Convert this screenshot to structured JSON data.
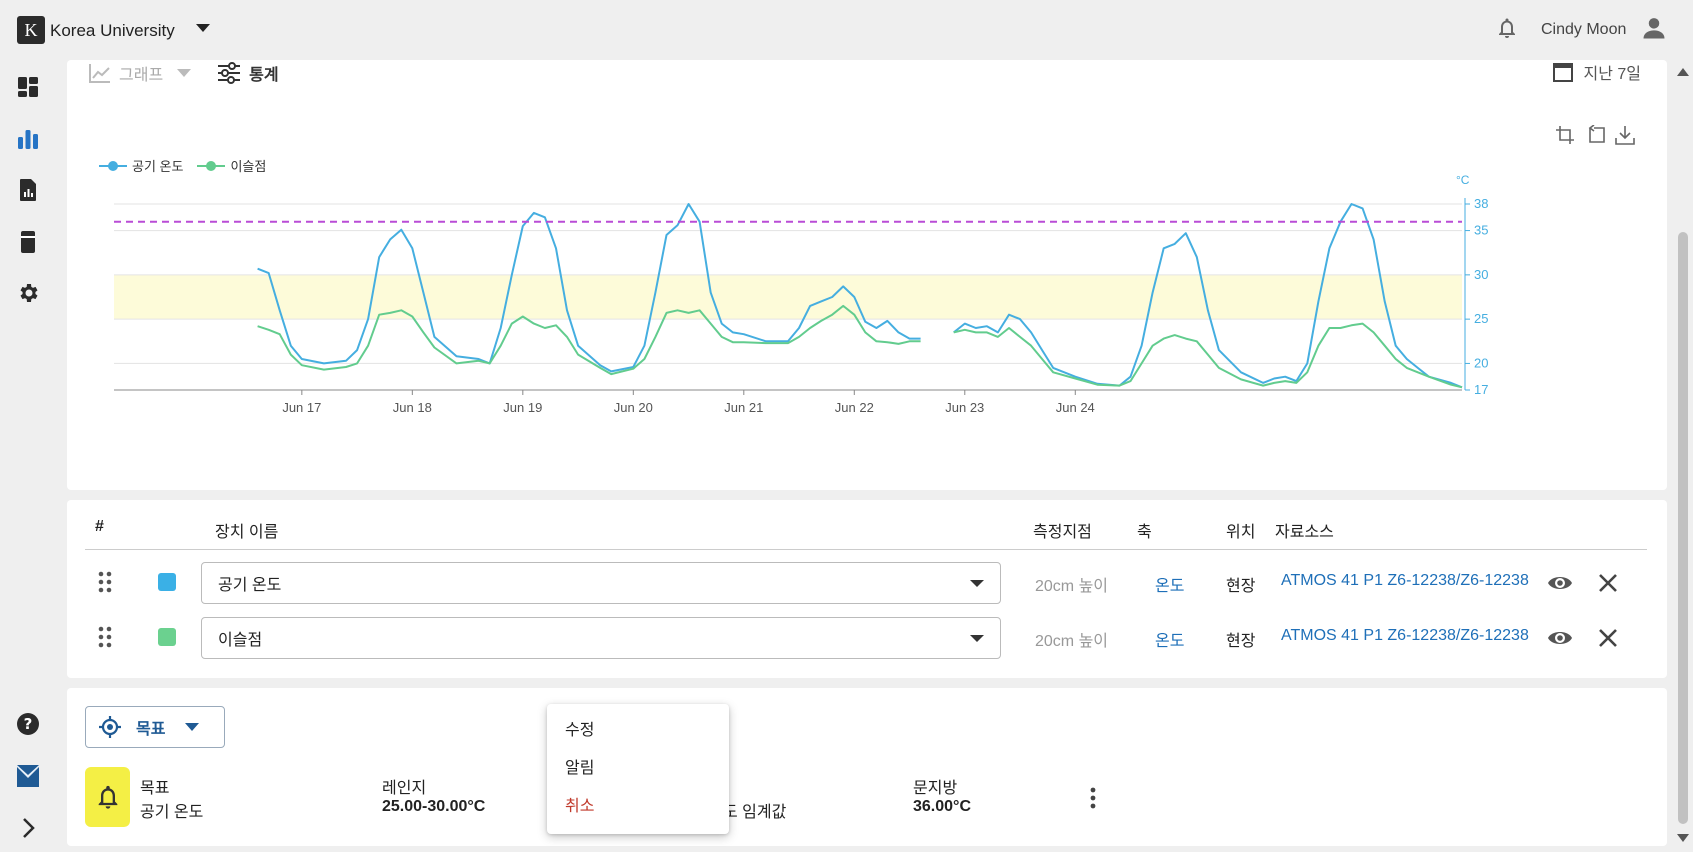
{
  "header": {
    "org_logo_letter": "K",
    "org_name": "Korea University",
    "user_name": "Cindy Moon"
  },
  "rail": {
    "icons": [
      "dashboard-icon",
      "bar-chart-icon",
      "report-icon",
      "device-icon",
      "gear-icon",
      "help-icon",
      "brand-logo-icon",
      "expand-icon"
    ],
    "active": "bar-chart-icon"
  },
  "chart_view": {
    "graph_tab": "그래프",
    "stats_tab": "통계",
    "date_range": "지난 7일"
  },
  "chart_data": {
    "type": "line",
    "title": "",
    "legend_placement": "top-left",
    "series": [
      {
        "name": "공기 온도",
        "color": "#45aee0",
        "points": [
          [
            16.6,
            30.7
          ],
          [
            16.7,
            30.2
          ],
          [
            16.8,
            26.0
          ],
          [
            16.9,
            22.0
          ],
          [
            17.0,
            20.5
          ],
          [
            17.2,
            20.0
          ],
          [
            17.4,
            20.3
          ],
          [
            17.5,
            21.5
          ],
          [
            17.6,
            25.0
          ],
          [
            17.7,
            32.0
          ],
          [
            17.8,
            34.0
          ],
          [
            17.9,
            35.1
          ],
          [
            18.0,
            33.0
          ],
          [
            18.1,
            28.0
          ],
          [
            18.2,
            23.0
          ],
          [
            18.4,
            20.8
          ],
          [
            18.6,
            20.5
          ],
          [
            18.7,
            20.0
          ],
          [
            18.8,
            24.0
          ],
          [
            18.9,
            30.0
          ],
          [
            19.0,
            35.5
          ],
          [
            19.1,
            37.0
          ],
          [
            19.2,
            36.5
          ],
          [
            19.3,
            33.0
          ],
          [
            19.4,
            26.0
          ],
          [
            19.5,
            22.0
          ],
          [
            19.7,
            19.8
          ],
          [
            19.8,
            19.1
          ],
          [
            20.0,
            19.6
          ],
          [
            20.1,
            22.0
          ],
          [
            20.2,
            28.0
          ],
          [
            20.3,
            34.5
          ],
          [
            20.4,
            35.6
          ],
          [
            20.5,
            38.0
          ],
          [
            20.6,
            36.0
          ],
          [
            20.7,
            28.0
          ],
          [
            20.8,
            24.5
          ],
          [
            20.9,
            23.5
          ],
          [
            21.0,
            23.3
          ],
          [
            21.2,
            22.5
          ],
          [
            21.4,
            22.5
          ],
          [
            21.5,
            24.0
          ],
          [
            21.6,
            26.5
          ],
          [
            21.7,
            27.0
          ],
          [
            21.8,
            27.5
          ],
          [
            21.9,
            28.7
          ],
          [
            22.0,
            27.5
          ],
          [
            22.1,
            24.7
          ],
          [
            22.2,
            24.0
          ],
          [
            22.3,
            24.8
          ],
          [
            22.4,
            23.5
          ],
          [
            22.5,
            22.8
          ],
          [
            22.6,
            22.8
          ]
        ]
      },
      {
        "name": "이슬점",
        "color": "#62cc8e",
        "points": [
          [
            16.6,
            24.2
          ],
          [
            16.7,
            23.8
          ],
          [
            16.8,
            23.3
          ],
          [
            16.9,
            21.0
          ],
          [
            17.0,
            19.8
          ],
          [
            17.2,
            19.3
          ],
          [
            17.4,
            19.6
          ],
          [
            17.5,
            20.0
          ],
          [
            17.6,
            22.0
          ],
          [
            17.7,
            25.5
          ],
          [
            17.8,
            25.7
          ],
          [
            17.9,
            26.0
          ],
          [
            18.0,
            25.3
          ],
          [
            18.1,
            23.5
          ],
          [
            18.2,
            21.8
          ],
          [
            18.4,
            20.0
          ],
          [
            18.6,
            20.3
          ],
          [
            18.7,
            20.0
          ],
          [
            18.8,
            22.0
          ],
          [
            18.9,
            24.5
          ],
          [
            19.0,
            25.3
          ],
          [
            19.1,
            24.5
          ],
          [
            19.2,
            24.0
          ],
          [
            19.3,
            24.3
          ],
          [
            19.4,
            23.0
          ],
          [
            19.5,
            21.0
          ],
          [
            19.7,
            19.5
          ],
          [
            19.8,
            18.8
          ],
          [
            20.0,
            19.4
          ],
          [
            20.1,
            20.5
          ],
          [
            20.2,
            23.0
          ],
          [
            20.3,
            25.7
          ],
          [
            20.4,
            26.0
          ],
          [
            20.5,
            25.7
          ],
          [
            20.6,
            26.0
          ],
          [
            20.7,
            24.5
          ],
          [
            20.8,
            23.0
          ],
          [
            20.9,
            22.4
          ],
          [
            21.0,
            22.4
          ],
          [
            21.2,
            22.3
          ],
          [
            21.4,
            22.3
          ],
          [
            21.5,
            23.0
          ],
          [
            21.6,
            24.0
          ],
          [
            21.7,
            24.8
          ],
          [
            21.8,
            25.5
          ],
          [
            21.9,
            26.5
          ],
          [
            22.0,
            25.5
          ],
          [
            22.1,
            23.5
          ],
          [
            22.2,
            22.5
          ],
          [
            22.3,
            22.4
          ],
          [
            22.4,
            22.2
          ],
          [
            22.5,
            22.5
          ],
          [
            22.6,
            22.5
          ]
        ]
      },
      {
        "name": "공기 온도",
        "color": "#45aee0",
        "points": [
          [
            22.9,
            23.5
          ],
          [
            23.0,
            24.5
          ],
          [
            23.1,
            24.0
          ],
          [
            23.2,
            24.2
          ],
          [
            23.3,
            23.5
          ],
          [
            23.4,
            25.5
          ],
          [
            23.5,
            25.0
          ],
          [
            23.6,
            23.5
          ],
          [
            23.7,
            21.5
          ],
          [
            23.8,
            19.5
          ],
          [
            24.0,
            18.5
          ],
          [
            24.2,
            17.7
          ],
          [
            24.4,
            17.5
          ],
          [
            24.5,
            18.5
          ],
          [
            24.6,
            22.0
          ],
          [
            24.7,
            28.0
          ],
          [
            24.8,
            33.0
          ],
          [
            24.9,
            33.5
          ],
          [
            25.0,
            34.7
          ],
          [
            25.1,
            32.0
          ],
          [
            25.2,
            26.0
          ],
          [
            25.3,
            21.5
          ],
          [
            25.5,
            19.0
          ],
          [
            25.7,
            17.8
          ],
          [
            25.8,
            18.3
          ],
          [
            25.9,
            18.5
          ],
          [
            26.0,
            18.0
          ],
          [
            26.1,
            20.0
          ],
          [
            26.2,
            27.0
          ],
          [
            26.3,
            33.0
          ],
          [
            26.4,
            36.0
          ],
          [
            26.5,
            38.0
          ],
          [
            26.6,
            37.5
          ],
          [
            26.7,
            34.0
          ],
          [
            26.8,
            27.0
          ],
          [
            26.9,
            22.0
          ],
          [
            27.0,
            20.5
          ],
          [
            27.1,
            19.5
          ],
          [
            27.2,
            18.5
          ],
          [
            27.4,
            17.8
          ],
          [
            27.5,
            17.3
          ]
        ]
      },
      {
        "name": "이슬점",
        "color": "#62cc8e",
        "points": [
          [
            22.9,
            23.5
          ],
          [
            23.0,
            23.8
          ],
          [
            23.1,
            23.5
          ],
          [
            23.2,
            23.5
          ],
          [
            23.3,
            23.0
          ],
          [
            23.4,
            24.0
          ],
          [
            23.5,
            23.0
          ],
          [
            23.6,
            22.0
          ],
          [
            23.7,
            20.5
          ],
          [
            23.8,
            19.0
          ],
          [
            24.0,
            18.3
          ],
          [
            24.2,
            17.6
          ],
          [
            24.4,
            17.5
          ],
          [
            24.5,
            18.0
          ],
          [
            24.6,
            20.0
          ],
          [
            24.7,
            22.0
          ],
          [
            24.8,
            22.8
          ],
          [
            24.9,
            23.2
          ],
          [
            25.0,
            22.8
          ],
          [
            25.1,
            22.5
          ],
          [
            25.2,
            21.0
          ],
          [
            25.3,
            19.5
          ],
          [
            25.5,
            18.2
          ],
          [
            25.7,
            17.5
          ],
          [
            25.8,
            17.8
          ],
          [
            25.9,
            18.0
          ],
          [
            26.0,
            17.8
          ],
          [
            26.1,
            19.0
          ],
          [
            26.2,
            22.0
          ],
          [
            26.3,
            24.0
          ],
          [
            26.4,
            24.0
          ],
          [
            26.5,
            24.3
          ],
          [
            26.6,
            24.5
          ],
          [
            26.7,
            23.5
          ],
          [
            26.8,
            22.0
          ],
          [
            26.9,
            20.5
          ],
          [
            27.0,
            19.5
          ],
          [
            27.1,
            19.0
          ],
          [
            27.2,
            18.5
          ],
          [
            27.4,
            17.6
          ],
          [
            27.5,
            17.3
          ]
        ]
      }
    ],
    "x_ticks": [
      {
        "label": "Jun 17",
        "x": 17
      },
      {
        "label": "Jun 18",
        "x": 18
      },
      {
        "label": "Jun 19",
        "x": 19
      },
      {
        "label": "Jun 20",
        "x": 20
      },
      {
        "label": "Jun 21",
        "x": 21
      },
      {
        "label": "Jun 22",
        "x": 22
      },
      {
        "label": "Jun 23",
        "x": 23
      },
      {
        "label": "Jun 24",
        "x": 24
      }
    ],
    "xlim": [
      15.3,
      27.5
    ],
    "ylim": [
      17,
      38
    ],
    "y_ticks": [
      17,
      20,
      25,
      30,
      35,
      38
    ],
    "y_unit": "°C",
    "y_axis_side": "right",
    "target_band": [
      25,
      30
    ],
    "threshold_line": 36,
    "colors": {
      "band": "#fdfbd9",
      "threshold": "#b94cd6",
      "axis": "#45aee0"
    }
  },
  "chart_tools": [
    "crop-icon",
    "undo-crop-icon",
    "download-icon"
  ],
  "table": {
    "headers": {
      "index": "#",
      "name": "장치 이름",
      "point": "측정지점",
      "axis": "축",
      "location": "위치",
      "source": "자료소스"
    },
    "rows": [
      {
        "name": "공기 온도",
        "swatch": "#3ab0e6",
        "point": "20cm 높이",
        "axis": "온도",
        "location": "현장",
        "source": "ATMOS 41 P1 Z6-12238/Z6-12238"
      },
      {
        "name": "이슬점",
        "swatch": "#6bd18f",
        "point": "20cm 높이",
        "axis": "온도",
        "location": "현장",
        "source": "ATMOS 41 P1 Z6-12238/Z6-12238"
      }
    ]
  },
  "goal": {
    "button_label": "목표",
    "target_label": "목표",
    "target_value": "공기 온도",
    "range_label": "레인지",
    "range_value": "25.00-30.00°C",
    "threshold_label_fragment": "도 임계값",
    "limit_label": "문지방",
    "limit_value": "36.00°C"
  },
  "context_menu": {
    "items": [
      {
        "label": "수정",
        "style": "normal"
      },
      {
        "label": "알림",
        "style": "normal"
      },
      {
        "label": "취소",
        "style": "danger"
      }
    ]
  }
}
